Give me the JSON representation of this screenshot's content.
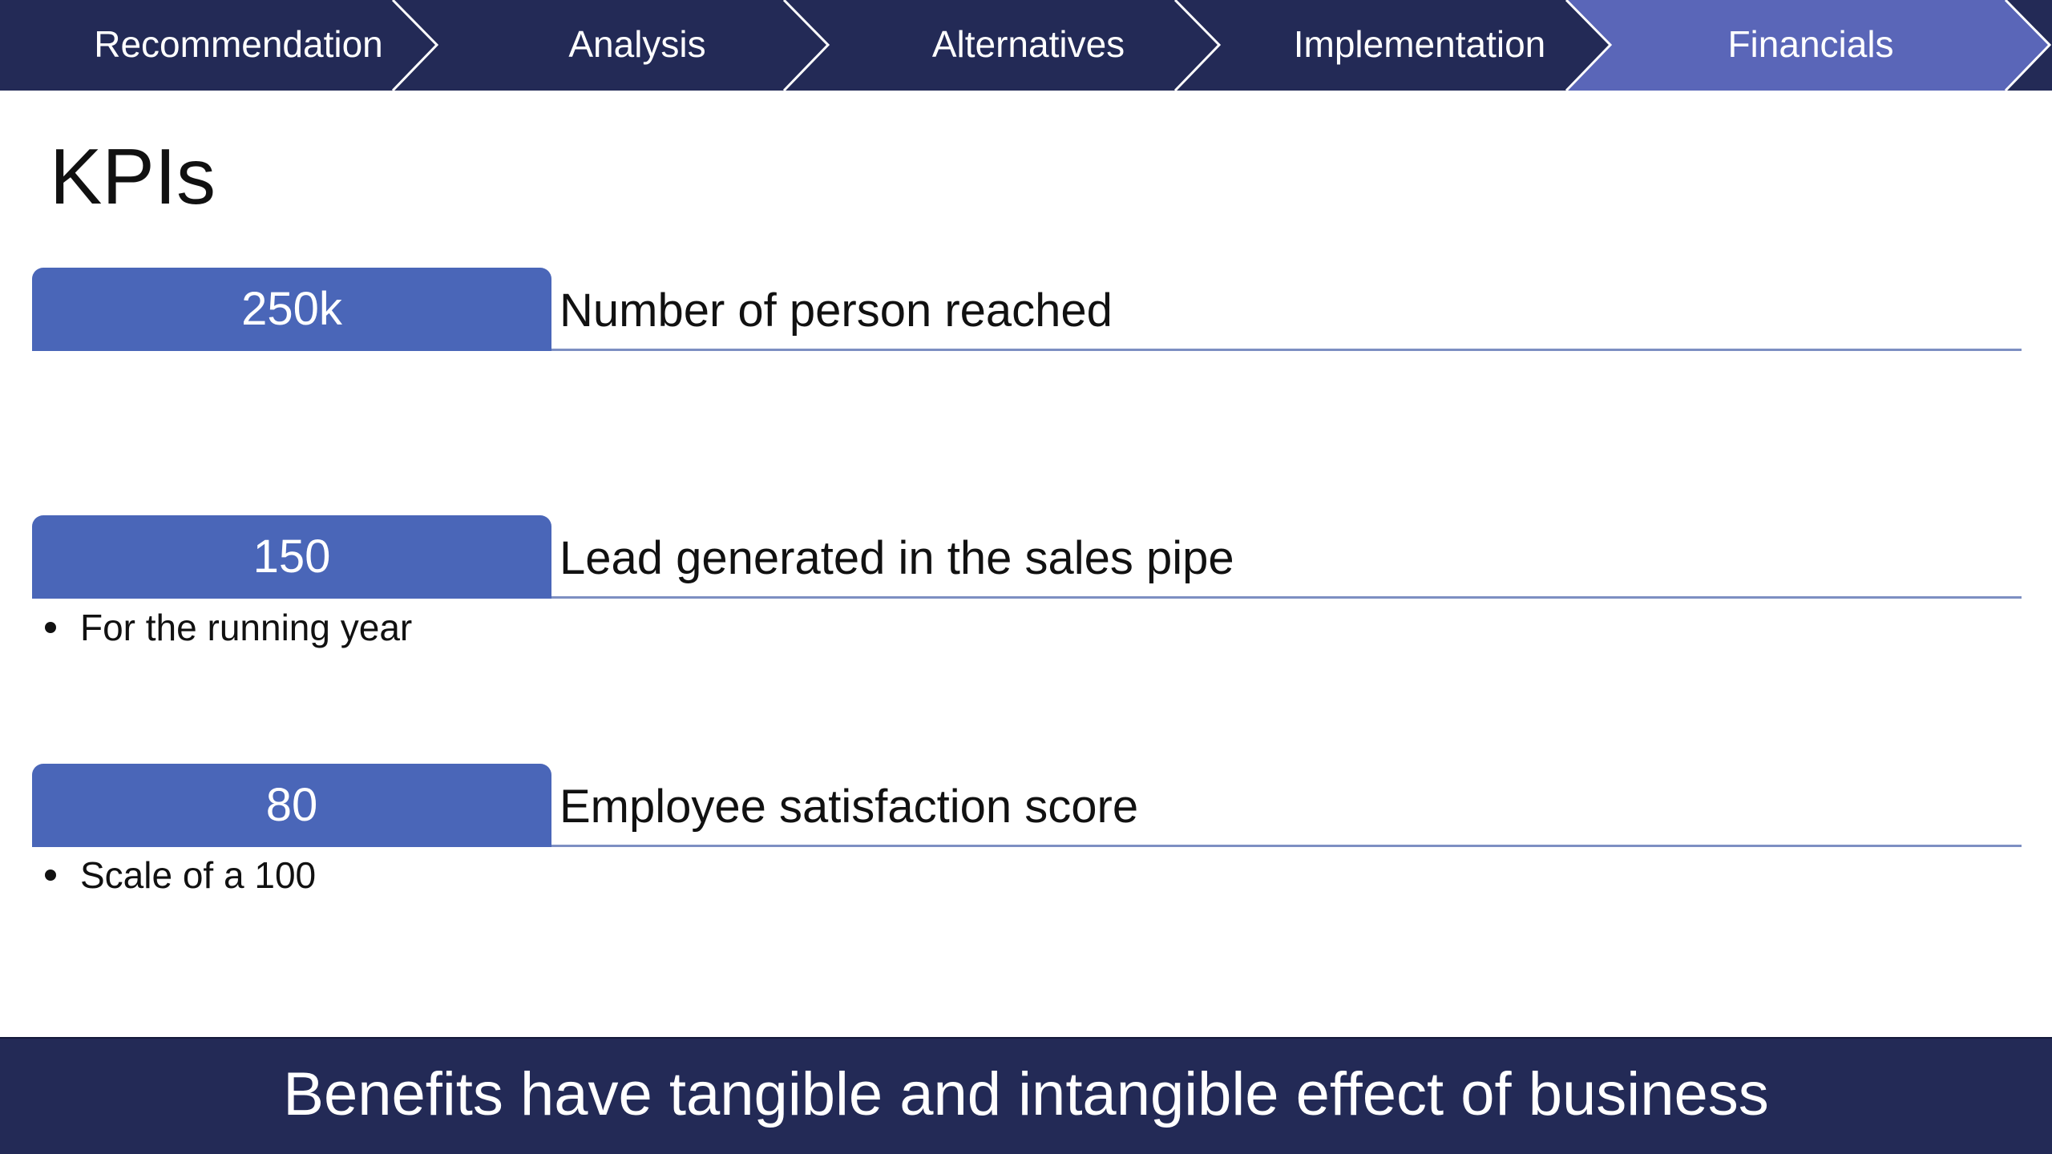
{
  "nav": {
    "tabs": [
      {
        "label": "Recommendation"
      },
      {
        "label": "Analysis"
      },
      {
        "label": "Alternatives"
      },
      {
        "label": "Implementation"
      },
      {
        "label": "Financials"
      }
    ],
    "active_index": 4,
    "colors": {
      "inactive": "#232a56",
      "active": "#5a66b8",
      "separator": "#ffffff"
    }
  },
  "page": {
    "title": "KPIs"
  },
  "kpis": [
    {
      "value": "250k",
      "description": "Number of person reached",
      "note": ""
    },
    {
      "value": "150",
      "description": "Lead generated in the sales pipe",
      "note": "For the running year"
    },
    {
      "value": "80",
      "description": "Employee satisfaction score",
      "note": "Scale of a 100"
    }
  ],
  "footer": {
    "text": "Benefits have tangible and intangible effect of business"
  },
  "colors": {
    "kpi_value_bg": "#4a66b8",
    "kpi_line": "#7d8fc2",
    "footer_bg": "#232a56"
  }
}
